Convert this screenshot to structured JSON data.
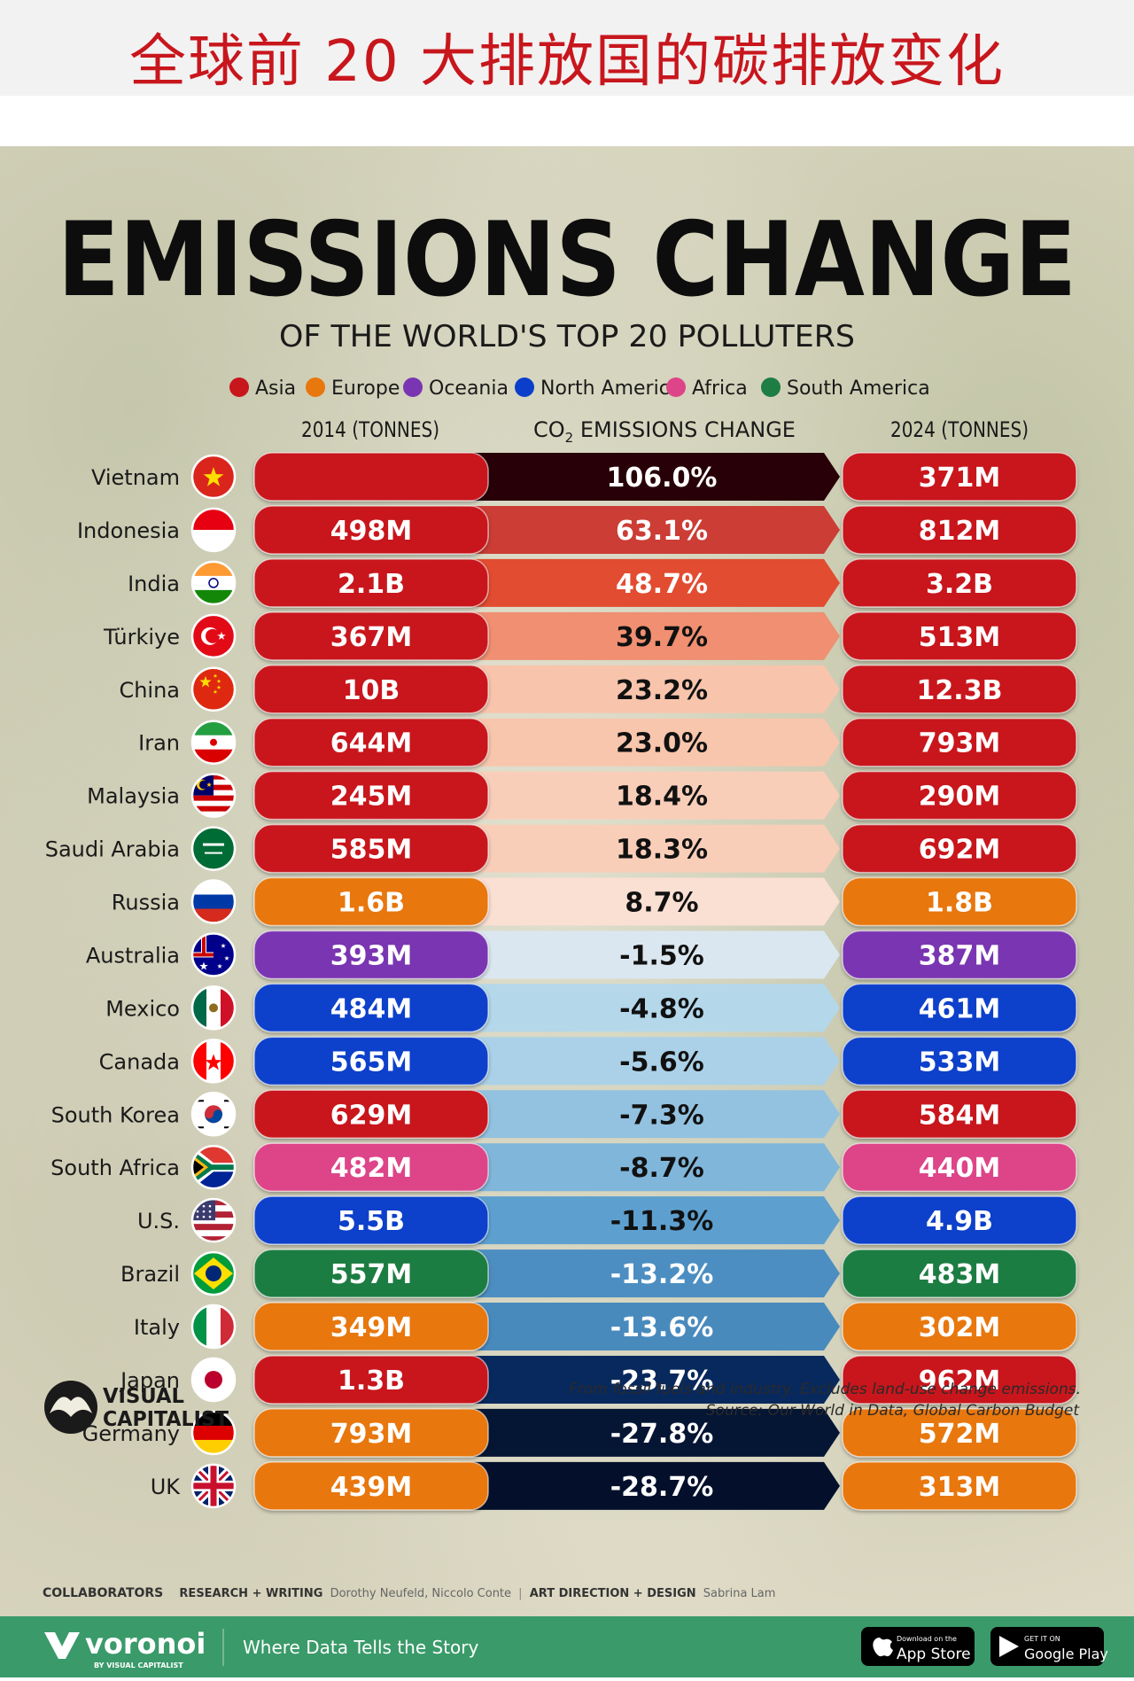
{
  "banner": {
    "title": "全球前 20 大排放国的碳排放变化"
  },
  "poster": {
    "title": "EMISSIONS CHANGE",
    "subtitle": "OF THE WORLD'S TOP 20 POLLUTERS",
    "note": "From fossil fuels and industry. Excludes land-use change emissions.",
    "source": "Source: Our World in Data, Global Carbon Budget",
    "brand_line1": "VISUAL",
    "brand_line2": "CAPITALIST",
    "credits": {
      "collaborators": "COLLABORATORS",
      "research_label": "RESEARCH + WRITING",
      "research_names": "Dorothy Neufeld, Niccolo Conte",
      "divider": "|",
      "art_label": "ART DIRECTION + DESIGN",
      "art_names": "Sabrina Lam"
    }
  },
  "footer": {
    "brand": "voronoi",
    "brand_sub": "BY VISUAL CAPITALIST",
    "tagline": "Where Data Tells the Story",
    "app_store_small": "Download on the",
    "app_store": "App Store",
    "google_small": "GET IT ON",
    "google": "Google Play"
  },
  "chart_data": {
    "type": "table",
    "columns": [
      "2014 (TONNES)",
      "CO",
      "2",
      " EMISSIONS CHANGE",
      "2024 (TONNES)"
    ],
    "legend": [
      {
        "name": "Asia",
        "color": "#c8161d"
      },
      {
        "name": "Europe",
        "color": "#e8770e"
      },
      {
        "name": "Oceania",
        "color": "#7a35b2"
      },
      {
        "name": "North America",
        "color": "#0b3fcb"
      },
      {
        "name": "Africa",
        "color": "#dd4588"
      },
      {
        "name": "South America",
        "color": "#1d7d43"
      }
    ],
    "rows": [
      {
        "country": "Vietnam",
        "region": "Asia",
        "v2014": "",
        "change_label": "106.0%",
        "change": 106.0,
        "v2024": "371M"
      },
      {
        "country": "Indonesia",
        "region": "Asia",
        "v2014": "498M",
        "change_label": "63.1%",
        "change": 63.1,
        "v2024": "812M"
      },
      {
        "country": "India",
        "region": "Asia",
        "v2014": "2.1B",
        "change_label": "48.7%",
        "change": 48.7,
        "v2024": "3.2B"
      },
      {
        "country": "Türkiye",
        "region": "Asia",
        "v2014": "367M",
        "change_label": "39.7%",
        "change": 39.7,
        "v2024": "513M"
      },
      {
        "country": "China",
        "region": "Asia",
        "v2014": "10B",
        "change_label": "23.2%",
        "change": 23.2,
        "v2024": "12.3B"
      },
      {
        "country": "Iran",
        "region": "Asia",
        "v2014": "644M",
        "change_label": "23.0%",
        "change": 23.0,
        "v2024": "793M"
      },
      {
        "country": "Malaysia",
        "region": "Asia",
        "v2014": "245M",
        "change_label": "18.4%",
        "change": 18.4,
        "v2024": "290M"
      },
      {
        "country": "Saudi Arabia",
        "region": "Asia",
        "v2014": "585M",
        "change_label": "18.3%",
        "change": 18.3,
        "v2024": "692M"
      },
      {
        "country": "Russia",
        "region": "Europe",
        "v2014": "1.6B",
        "change_label": "8.7%",
        "change": 8.7,
        "v2024": "1.8B"
      },
      {
        "country": "Australia",
        "region": "Oceania",
        "v2014": "393M",
        "change_label": "-1.5%",
        "change": -1.5,
        "v2024": "387M"
      },
      {
        "country": "Mexico",
        "region": "North America",
        "v2014": "484M",
        "change_label": "-4.8%",
        "change": -4.8,
        "v2024": "461M"
      },
      {
        "country": "Canada",
        "region": "North America",
        "v2014": "565M",
        "change_label": "-5.6%",
        "change": -5.6,
        "v2024": "533M"
      },
      {
        "country": "South Korea",
        "region": "Asia",
        "v2014": "629M",
        "change_label": "-7.3%",
        "change": -7.3,
        "v2024": "584M"
      },
      {
        "country": "South Africa",
        "region": "Africa",
        "v2014": "482M",
        "change_label": "-8.7%",
        "change": -8.7,
        "v2024": "440M"
      },
      {
        "country": "U.S.",
        "region": "North America",
        "v2014": "5.5B",
        "change_label": "-11.3%",
        "change": -11.3,
        "v2024": "4.9B"
      },
      {
        "country": "Brazil",
        "region": "South America",
        "v2014": "557M",
        "change_label": "-13.2%",
        "change": -13.2,
        "v2024": "483M"
      },
      {
        "country": "Italy",
        "region": "Europe",
        "v2014": "349M",
        "change_label": "-13.6%",
        "change": -13.6,
        "v2024": "302M"
      },
      {
        "country": "Japan",
        "region": "Asia",
        "v2014": "1.3B",
        "change_label": "-23.7%",
        "change": -23.7,
        "v2024": "962M"
      },
      {
        "country": "Germany",
        "region": "Europe",
        "v2014": "793M",
        "change_label": "-27.8%",
        "change": -27.8,
        "v2024": "572M"
      },
      {
        "country": "UK",
        "region": "Europe",
        "v2014": "439M",
        "change_label": "-28.7%",
        "change": -28.7,
        "v2024": "313M"
      }
    ]
  }
}
